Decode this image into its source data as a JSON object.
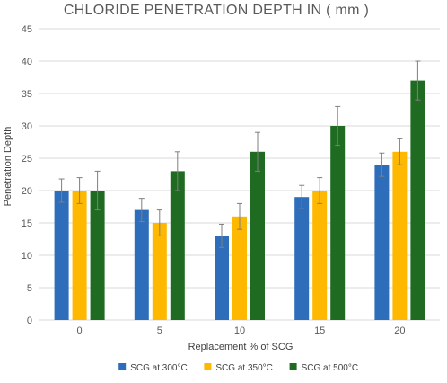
{
  "chart_data": {
    "type": "bar",
    "title": "CHLORIDE PENETRATION DEPTH IN ( mm )",
    "xlabel": "Replacement %  of  SCG",
    "ylabel": "Penetration Depth",
    "categories": [
      "0",
      "5",
      "10",
      "15",
      "20"
    ],
    "ylim": [
      0,
      45
    ],
    "yticks": [
      0,
      5,
      10,
      15,
      20,
      25,
      30,
      35,
      40,
      45
    ],
    "grid": true,
    "legend_position": "bottom",
    "series": [
      {
        "name": "SCG at 300°C",
        "color": "#2E6DBA",
        "values": [
          20,
          17,
          13,
          19,
          24
        ],
        "errors": [
          1.8,
          1.8,
          1.8,
          1.8,
          1.8
        ]
      },
      {
        "name": "SCG at 350°C",
        "color": "#FFB800",
        "values": [
          20,
          15,
          16,
          20,
          26
        ],
        "errors": [
          2,
          2,
          2,
          2,
          2
        ]
      },
      {
        "name": "SCG at 500°C",
        "color": "#1E6B21",
        "values": [
          20,
          23,
          26,
          30,
          37
        ],
        "errors": [
          3,
          3,
          3,
          3,
          3
        ]
      }
    ]
  }
}
